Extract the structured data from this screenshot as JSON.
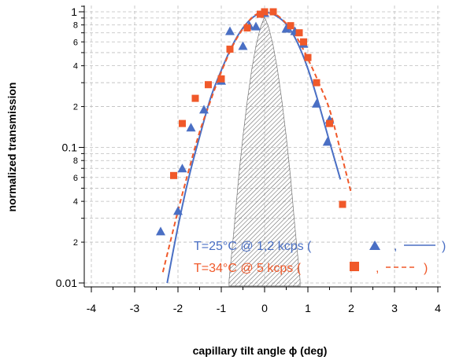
{
  "chart_data": {
    "type": "scatter",
    "xlabel": "capillary tilt angle ϕ (deg)",
    "ylabel": "normalized transmission",
    "xlim": [
      -4.3,
      4.3
    ],
    "ylim": [
      0.0095,
      1.12
    ],
    "yscale": "log",
    "grid": true,
    "x_ticks": [
      "-4",
      "-3",
      "-2",
      "-1",
      "0",
      "1",
      "2",
      "3",
      "4"
    ],
    "y_major_ticks": [
      "0.01",
      "0.1",
      "1"
    ],
    "y_minor_labels": [
      "2",
      "4",
      "6",
      "8",
      "2",
      "4",
      "6",
      "8"
    ],
    "colors": {
      "blue": "#4a6fc4",
      "orange": "#f0592a",
      "hatch": "#555555"
    },
    "legend": {
      "entries": [
        {
          "text": "T=25°C @ 1,2 kcps  (",
          "separator": ",",
          "close": ")",
          "marker": "triangle",
          "line": "solid",
          "color": "#4a6fc4"
        },
        {
          "text": "T=34°C @ 5 kcps (",
          "separator": ",",
          "close": ")",
          "marker": "square",
          "line": "dashed",
          "color": "#f0592a"
        }
      ]
    },
    "series": [
      {
        "marker": "triangle",
        "color": "#4a6fc4",
        "x": [
          -2.4,
          -2.0,
          -1.9,
          -1.7,
          -1.4,
          -1.0,
          -0.8,
          -0.5,
          -0.35,
          -0.2,
          0.0,
          0.5,
          0.7,
          0.9,
          1.2,
          1.45,
          1.5
        ],
        "y": [
          0.024,
          0.034,
          0.07,
          0.14,
          0.19,
          0.31,
          0.72,
          0.56,
          0.79,
          0.78,
          0.98,
          0.75,
          0.72,
          0.58,
          0.21,
          0.11,
          0.16
        ]
      },
      {
        "marker": "square",
        "color": "#f0592a",
        "x": [
          -2.1,
          -1.9,
          -1.6,
          -1.3,
          -1.0,
          -0.8,
          -0.4,
          -0.1,
          0.0,
          0.2,
          0.6,
          0.8,
          0.9,
          1.0,
          1.2,
          1.5,
          1.8
        ],
        "y": [
          0.062,
          0.15,
          0.23,
          0.29,
          0.32,
          0.53,
          0.76,
          0.96,
          1.0,
          1.0,
          0.79,
          0.7,
          0.6,
          0.46,
          0.3,
          0.15,
          0.038
        ]
      },
      {
        "line": "solid",
        "color": "#4a6fc4",
        "x": [
          -2.25,
          -2.0,
          -1.75,
          -1.5,
          -1.25,
          -1.0,
          -0.75,
          -0.5,
          -0.25,
          0.0,
          0.25,
          0.5,
          0.75,
          1.0,
          1.25,
          1.5,
          1.75
        ],
        "y": [
          0.01,
          0.026,
          0.06,
          0.12,
          0.23,
          0.37,
          0.56,
          0.76,
          0.92,
          0.99,
          0.94,
          0.81,
          0.6,
          0.38,
          0.21,
          0.11,
          0.058
        ]
      },
      {
        "line": "dashed",
        "color": "#f0592a",
        "x": [
          -2.35,
          -2.0,
          -1.75,
          -1.5,
          -1.25,
          -1.0,
          -0.75,
          -0.5,
          -0.25,
          0.0,
          0.25,
          0.5,
          0.75,
          1.0,
          1.25,
          1.5,
          1.75,
          2.0
        ],
        "y": [
          0.012,
          0.034,
          0.068,
          0.13,
          0.22,
          0.36,
          0.55,
          0.75,
          0.93,
          1.0,
          0.96,
          0.82,
          0.64,
          0.45,
          0.3,
          0.19,
          0.095,
          0.046
        ]
      },
      {
        "area": "hatched",
        "color": "#555555",
        "x": [
          -0.82,
          -0.7,
          -0.6,
          -0.5,
          -0.4,
          -0.3,
          -0.2,
          -0.1,
          0.0,
          0.1,
          0.2,
          0.3,
          0.4,
          0.5,
          0.6,
          0.7,
          0.82
        ],
        "y": [
          0.0105,
          0.026,
          0.06,
          0.12,
          0.22,
          0.37,
          0.56,
          0.76,
          0.92,
          0.76,
          0.56,
          0.37,
          0.22,
          0.12,
          0.06,
          0.026,
          0.0105
        ]
      }
    ]
  }
}
